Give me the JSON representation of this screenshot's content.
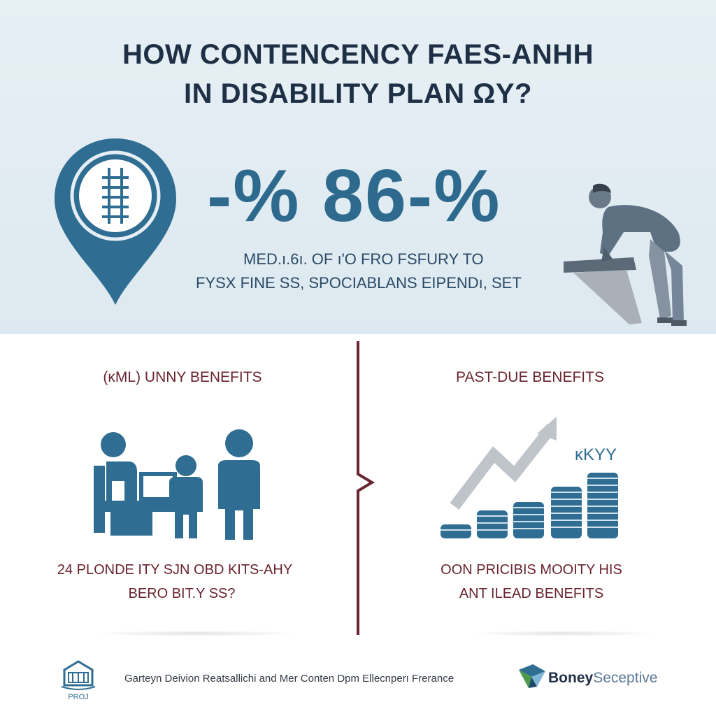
{
  "headline": {
    "line1": "HOW CONTENCENCY FAES-ANHH",
    "line2": "IN DISABILITY PLAN ΩY?"
  },
  "stat": {
    "value": "-% 86-%",
    "line1": "MED.ı.6ı. OF ı'O FRO FSFURY TO",
    "line2": "FYSX  FINE SS, SPOCIABLANS EIPENDı, SET"
  },
  "left_column": {
    "heading": "(ĸΜL) UNNY BENEFITS",
    "text_line1": "24 PLONDE ITY SJN OBD KITS-AHY",
    "text_line2": "BERO BIT.Y SS?"
  },
  "right_column": {
    "heading": "PAST-DUE BENEFITS",
    "chart_label": "ĸKYY",
    "text_line1": "OON PRICIBIS MOOITY HIS",
    "text_line2": "ANT ILEAD BENEFITS"
  },
  "footer": {
    "left_logo_caption": "PROJ",
    "text": "Garteyn Deivion Reatsallichi and Mer Conten Dpm Ellecnperı Frerance",
    "brand_bold": "Boney",
    "brand_light": "Seceptive"
  },
  "colors": {
    "accent_blue": "#2e6a8d",
    "dark_navy": "#1f2f45",
    "maroon": "#6a2530",
    "figure_blue": "#2f6d92",
    "gray": "#a7adb4"
  },
  "icons": {
    "pin": "location-pin-money-icon",
    "person": "person-at-desk-icon",
    "family": "family-icon",
    "chart": "coin-stack-growth-icon"
  }
}
